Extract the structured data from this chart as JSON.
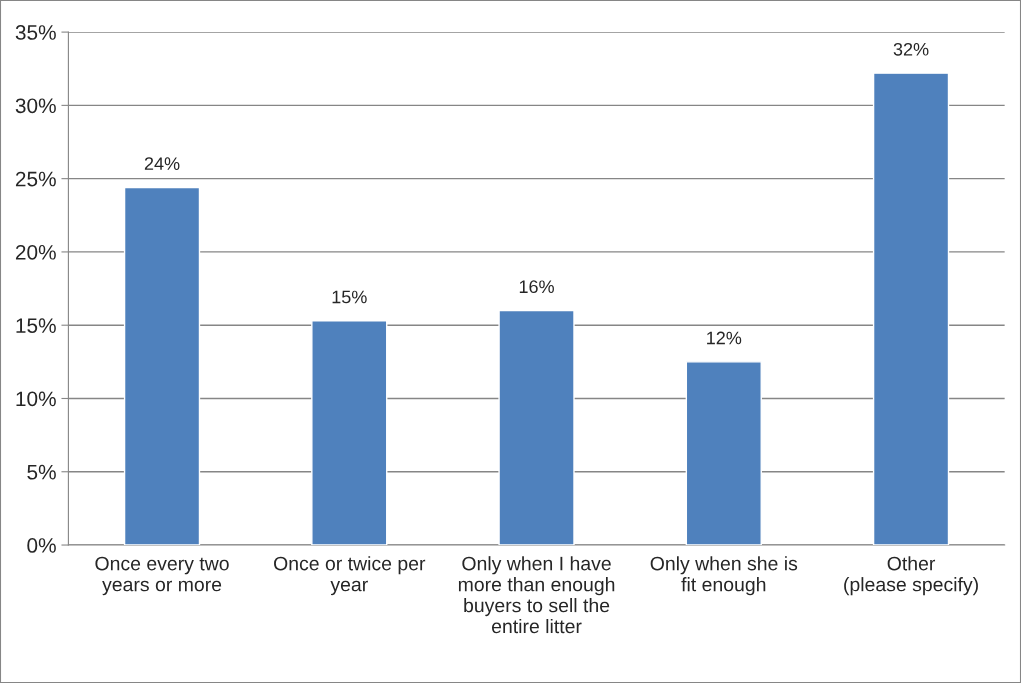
{
  "chart_data": {
    "type": "bar",
    "categories": [
      "Once every two\nyears or more",
      "Once or twice per\nyear",
      "Only when I have\nmore than enough\nbuyers to sell the\nentire litter",
      "Only when she is\nfit enough",
      "Other\n(please specify)"
    ],
    "values": [
      24.4,
      15.3,
      16.0,
      12.5,
      32.2
    ],
    "value_labels": [
      "24%",
      "15%",
      "16%",
      "12%",
      "32%"
    ],
    "color": "#4f81bd",
    "ylim": [
      0,
      35
    ],
    "yticks": [
      {
        "value": 0,
        "label": "0%"
      },
      {
        "value": 5,
        "label": "5%"
      },
      {
        "value": 10,
        "label": "10%"
      },
      {
        "value": 15,
        "label": "15%"
      },
      {
        "value": 20,
        "label": "20%"
      },
      {
        "value": 25,
        "label": "25%"
      },
      {
        "value": 30,
        "label": "30%"
      },
      {
        "value": 35,
        "label": "35%"
      }
    ],
    "grid": "y",
    "legend": false
  }
}
